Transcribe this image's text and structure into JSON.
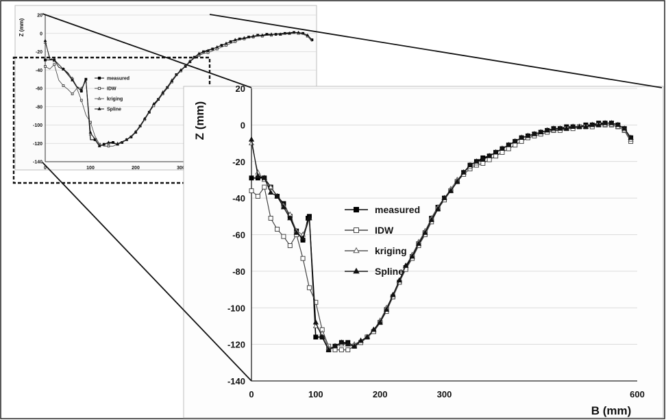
{
  "chart_data": [
    {
      "id": "zoomed",
      "type": "line",
      "xlabel": "B (mm)",
      "ylabel": "Z (mm)",
      "xlim": [
        0,
        600
      ],
      "ylim": [
        -140,
        20
      ],
      "xticks": [
        0,
        100,
        200,
        300,
        600
      ],
      "yticks": [
        20,
        0,
        -20,
        -40,
        -60,
        -80,
        -100,
        -120,
        -140
      ],
      "grid": "horizontal",
      "legend": "inside, center-left",
      "series": [
        {
          "name": "measured",
          "marker": "filled-square",
          "x": [
            0,
            10,
            20,
            30,
            40,
            50,
            60,
            70,
            80,
            88,
            90,
            100,
            110,
            120,
            130,
            140,
            150,
            160,
            170,
            180,
            190,
            200,
            210,
            220,
            230,
            240,
            250,
            260,
            270,
            280,
            290,
            300,
            310,
            320,
            330,
            340,
            350,
            360,
            370,
            380,
            390,
            400,
            410,
            420,
            430,
            440,
            450,
            460,
            470,
            480,
            490,
            500,
            510,
            520,
            530,
            540,
            550,
            560,
            570,
            580,
            590
          ],
          "y": [
            -29,
            -29,
            -29,
            -34,
            -39,
            -43,
            -50,
            -58,
            -63,
            -51,
            -50,
            -116,
            -116,
            -123,
            -121,
            -119,
            -119,
            -121,
            -119,
            -116,
            -113,
            -108,
            -101,
            -94,
            -86,
            -78,
            -72,
            -65,
            -59,
            -51,
            -45,
            -40,
            -36,
            -31,
            -26,
            -22,
            -20,
            -18,
            -17,
            -15,
            -13,
            -11,
            -9,
            -7,
            -6,
            -5,
            -4,
            -3,
            -2,
            -2,
            -1,
            -1,
            -1,
            0,
            0,
            1,
            1,
            1,
            0,
            -2,
            -7
          ]
        },
        {
          "name": "IDW",
          "marker": "open-square",
          "x": [
            0,
            10,
            20,
            30,
            40,
            50,
            60,
            70,
            80,
            90,
            100,
            110,
            120,
            130,
            140,
            150,
            160,
            170,
            180,
            190,
            200,
            210,
            220,
            230,
            240,
            250,
            260,
            270,
            280,
            290,
            300,
            310,
            320,
            330,
            340,
            350,
            360,
            370,
            380,
            390,
            400,
            410,
            420,
            430,
            440,
            450,
            460,
            470,
            480,
            490,
            500,
            510,
            520,
            530,
            540,
            550,
            560,
            570,
            580,
            590
          ],
          "y": [
            -36,
            -39,
            -34,
            -51,
            -57,
            -61,
            -66,
            -60,
            -73,
            -89,
            -97,
            -112,
            -121,
            -123,
            -123,
            -123,
            -121,
            -119,
            -116,
            -113,
            -108,
            -102,
            -94,
            -86,
            -79,
            -73,
            -66,
            -60,
            -53,
            -46,
            -41,
            -36,
            -31,
            -27,
            -24,
            -22,
            -21,
            -19,
            -17,
            -15,
            -13,
            -11,
            -9,
            -7,
            -6,
            -5,
            -4,
            -3,
            -3,
            -2,
            -2,
            -1,
            -1,
            -1,
            0,
            0,
            0,
            -1,
            -3,
            -9
          ]
        },
        {
          "name": "kriging",
          "marker": "open-triangle",
          "x": [
            0,
            10,
            20,
            30,
            40,
            50,
            60,
            70,
            80,
            90,
            100,
            110,
            120,
            130,
            140,
            150,
            160,
            170,
            180,
            190,
            200,
            210,
            220,
            230,
            240,
            250,
            260,
            270,
            280,
            290,
            300,
            310,
            320,
            330,
            340,
            350,
            360,
            370,
            380,
            390,
            400,
            410,
            420,
            430,
            440,
            450,
            460,
            470,
            480,
            490,
            500,
            510,
            520,
            530,
            540,
            550,
            560,
            570,
            580,
            590
          ],
          "y": [
            -10,
            -26,
            -30,
            -34,
            -39,
            -44,
            -49,
            -58,
            -60,
            -51,
            -110,
            -114,
            -122,
            -121,
            -120,
            -120,
            -120,
            -118,
            -116,
            -112,
            -107,
            -100,
            -93,
            -85,
            -77,
            -71,
            -64,
            -58,
            -51,
            -45,
            -40,
            -35,
            -30,
            -26,
            -23,
            -21,
            -19,
            -17,
            -15,
            -13,
            -11,
            -9,
            -7,
            -6,
            -5,
            -4,
            -3,
            -3,
            -2,
            -2,
            -1,
            -1,
            -1,
            0,
            0,
            0,
            0,
            -1,
            -3,
            -8
          ]
        },
        {
          "name": "Spline",
          "marker": "filled-triangle",
          "x": [
            0,
            10,
            20,
            30,
            40,
            50,
            60,
            70,
            80,
            90,
            100,
            110,
            120,
            130,
            140,
            150,
            160,
            170,
            180,
            190,
            200,
            210,
            220,
            230,
            240,
            250,
            260,
            270,
            280,
            290,
            300,
            310,
            320,
            330,
            340,
            350,
            360,
            370,
            380,
            390,
            400,
            410,
            420,
            430,
            440,
            450,
            460,
            470,
            480,
            490,
            500,
            510,
            520,
            530,
            540,
            550,
            560,
            570,
            580,
            590
          ],
          "y": [
            -8,
            -28,
            -29,
            -37,
            -39,
            -45,
            -51,
            -59,
            -62,
            -51,
            -108,
            -116,
            -123,
            -121,
            -119,
            -120,
            -121,
            -118,
            -116,
            -112,
            -108,
            -101,
            -93,
            -85,
            -77,
            -72,
            -65,
            -59,
            -52,
            -46,
            -40,
            -36,
            -31,
            -26,
            -22,
            -20,
            -19,
            -17,
            -15,
            -13,
            -11,
            -9,
            -7,
            -6,
            -5,
            -4,
            -3,
            -2,
            -2,
            -2,
            -1,
            -1,
            -1,
            0,
            0,
            1,
            1,
            0,
            -2,
            -7
          ]
        }
      ]
    },
    {
      "id": "overview",
      "type": "line",
      "xlabel": "",
      "ylabel": "Z (mm)",
      "xlim": [
        0,
        600
      ],
      "ylim": [
        -140,
        20
      ],
      "xticks": [
        0,
        100,
        200,
        300
      ],
      "yticks": [
        20,
        0,
        -20,
        -40,
        -60,
        -80,
        -100,
        -120,
        -140
      ],
      "grid": "horizontal",
      "legend": "inside, center",
      "series_names": [
        "measured",
        "IDW",
        "kriging",
        "Spline"
      ]
    }
  ]
}
